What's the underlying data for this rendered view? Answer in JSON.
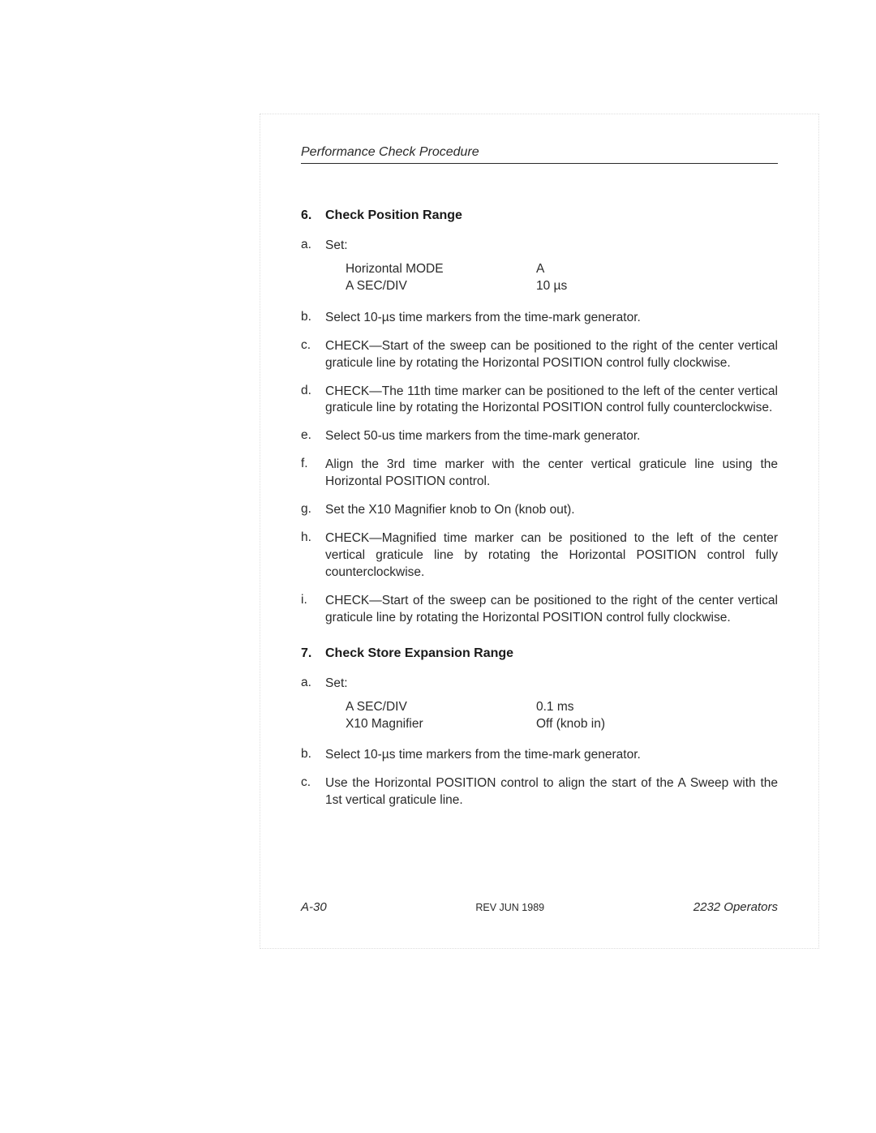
{
  "header": {
    "title": "Performance Check Procedure"
  },
  "sections": [
    {
      "num": "6.",
      "title": "Check Position Range",
      "items": [
        {
          "letter": "a.",
          "text": "Set:",
          "settings": [
            {
              "label": "Horizontal MODE",
              "value": "A"
            },
            {
              "label": "A SEC/DIV",
              "value": "10 µs"
            }
          ]
        },
        {
          "letter": "b.",
          "text": "Select 10-µs time markers from the time-mark generator."
        },
        {
          "letter": "c.",
          "text": "CHECK—Start of the sweep can be positioned to the right of the center vertical graticule line by rotating the Horizontal POSITION control fully clockwise."
        },
        {
          "letter": "d.",
          "text": "CHECK—The 11th time marker can be positioned to the left of the center vertical graticule line by rotating the Horizontal POSITION control fully counterclockwise."
        },
        {
          "letter": "e.",
          "text": "Select 50-us time markers from the time-mark generator."
        },
        {
          "letter": "f.",
          "text": "Align the 3rd time marker with the center vertical graticule line using the Horizontal POSITION control."
        },
        {
          "letter": "g.",
          "text": "Set the X10 Magnifier knob to On (knob out)."
        },
        {
          "letter": "h.",
          "text": "CHECK—Magnified time marker can be positioned to the left of the center vertical graticule line by rotating the Horizontal POSITION control fully counterclockwise."
        },
        {
          "letter": "i.",
          "text": "CHECK—Start of the sweep can be positioned to the right of the center vertical graticule line by rotating the Horizontal POSITION control fully clockwise."
        }
      ]
    },
    {
      "num": "7.",
      "title": "Check Store Expansion Range",
      "items": [
        {
          "letter": "a.",
          "text": "Set:",
          "settings": [
            {
              "label": "A SEC/DIV",
              "value": "0.1 ms"
            },
            {
              "label": "X10 Magnifier",
              "value": "Off (knob in)"
            }
          ]
        },
        {
          "letter": "b.",
          "text": "Select 10-µs time markers from the time-mark generator."
        },
        {
          "letter": "c.",
          "text": "Use the Horizontal POSITION control to align the start of the A Sweep with the 1st vertical graticule line."
        }
      ]
    }
  ],
  "footer": {
    "left": "A-30",
    "center": "REV JUN 1989",
    "right": "2232 Operators"
  }
}
